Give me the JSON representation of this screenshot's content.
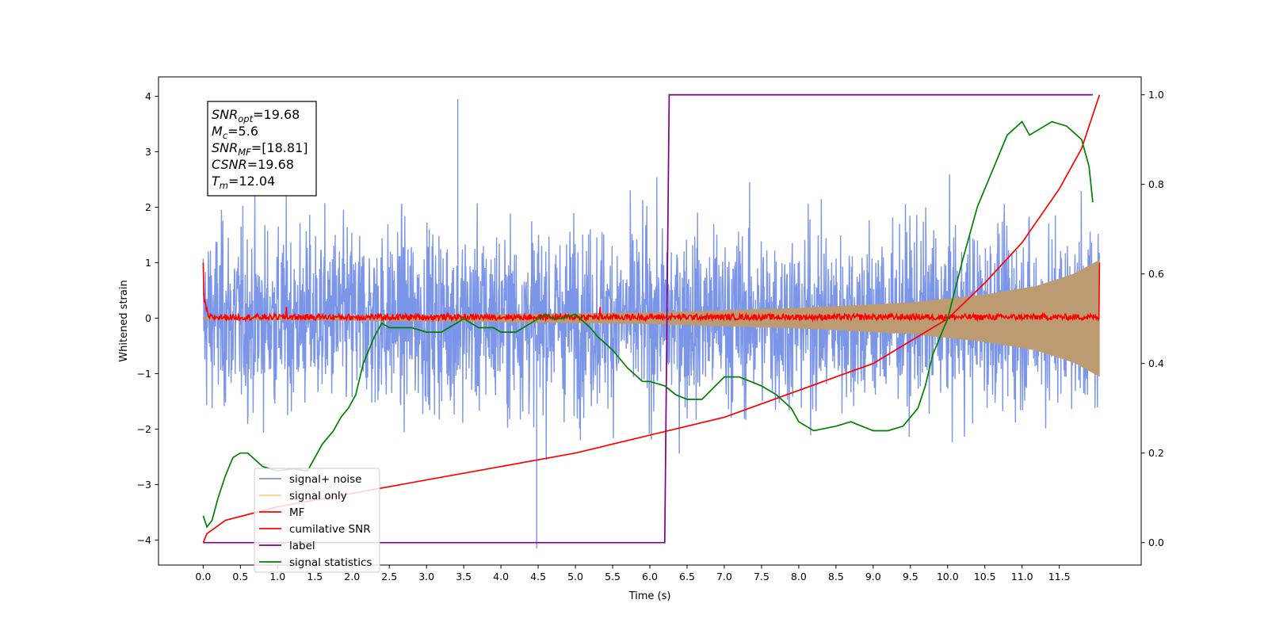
{
  "chart_data": {
    "type": "line",
    "xlabel": "Time (s)",
    "ylabel": "Whitened strain",
    "xlim": [
      -0.6,
      12.6
    ],
    "ylim": [
      -4.45,
      4.35
    ],
    "y2lim": [
      -0.05,
      1.04
    ],
    "x_ticks": [
      0.0,
      0.5,
      1.0,
      1.5,
      2.0,
      2.5,
      3.0,
      3.5,
      4.0,
      4.5,
      5.0,
      5.5,
      6.0,
      6.5,
      7.0,
      7.5,
      8.0,
      8.5,
      9.0,
      9.5,
      10.0,
      10.5,
      11.0,
      11.5
    ],
    "x_tick_labels": [
      "0.0",
      "0.5",
      "1.0",
      "1.5",
      "2.0",
      "2.5",
      "3.0",
      "3.5",
      "4.0",
      "4.5",
      "5.0",
      "5.5",
      "6.0",
      "6.5",
      "7.0",
      "7.5",
      "8.0",
      "8.5",
      "9.0",
      "9.5",
      "10.0",
      "10.5",
      "11.0",
      "11.5"
    ],
    "y_ticks": [
      4,
      3,
      2,
      1,
      0,
      -1,
      -2,
      -3,
      -4
    ],
    "y_tick_labels": [
      "4",
      "3",
      "2",
      "1",
      "0",
      "−1",
      "−2",
      "−3",
      "−4"
    ],
    "y2_ticks": [
      1.0,
      0.8,
      0.6,
      0.4,
      0.2,
      0.0
    ],
    "y2_tick_labels": [
      "1.0",
      "0.8",
      "0.6",
      "0.4",
      "0.2",
      "0.0"
    ],
    "grid": false,
    "legend_position": "bottom-left",
    "colors": {
      "signal_noise": "#7b95e8",
      "signal_only": "#ffd27f",
      "mf": "#ff0000",
      "cumulative_snr": "#ff0000",
      "label": "#800080",
      "signal_statistics": "#008000",
      "overlap": "#bc9b72"
    },
    "annotation": {
      "lines": [
        {
          "base": "SNR",
          "sub": "opt",
          "rest": "=19.68"
        },
        {
          "base": "M",
          "sub": "c",
          "rest": "=5.6"
        },
        {
          "base": "SNR",
          "sub": "MF",
          "rest": "=[18.81]"
        },
        {
          "base": "CSNR",
          "sub": "",
          "rest": "=19.68"
        },
        {
          "base": "T",
          "sub": "m",
          "rest": "=12.04"
        }
      ]
    },
    "series": [
      {
        "name": "signal+ noise",
        "axis": "left",
        "style": "noise",
        "x_range": [
          0.0,
          12.04
        ],
        "typical_range": [
          -2.3,
          2.3
        ],
        "max": 3.95,
        "min": -4.15
      },
      {
        "name": "signal only",
        "axis": "left",
        "style": "chirp",
        "x": [
          0.0,
          3.0,
          6.0,
          8.0,
          9.5,
          10.5,
          11.2,
          11.7,
          12.04
        ],
        "amplitude": [
          0.02,
          0.05,
          0.1,
          0.18,
          0.28,
          0.42,
          0.58,
          0.8,
          1.05
        ]
      },
      {
        "name": "MF",
        "axis": "left",
        "style": "mf",
        "x_range": [
          0.0,
          12.04
        ],
        "start_value": 1.0,
        "baseline": 0.02,
        "end_value": 1.0
      },
      {
        "name": "cumilative SNR",
        "axis": "right",
        "x": [
          0.0,
          0.05,
          0.3,
          1.0,
          2.0,
          3.0,
          4.0,
          5.0,
          6.0,
          6.5,
          7.0,
          7.5,
          8.0,
          8.5,
          9.0,
          9.5,
          10.0,
          10.5,
          11.0,
          11.5,
          11.8,
          12.04
        ],
        "y": [
          0.0,
          0.02,
          0.05,
          0.08,
          0.11,
          0.14,
          0.17,
          0.2,
          0.24,
          0.26,
          0.28,
          0.31,
          0.34,
          0.37,
          0.4,
          0.45,
          0.5,
          0.58,
          0.67,
          0.79,
          0.88,
          1.0
        ]
      },
      {
        "name": "label",
        "axis": "right",
        "x": [
          0.0,
          6.2,
          6.26,
          11.95
        ],
        "y": [
          0.0,
          0.0,
          1.0,
          1.0
        ]
      },
      {
        "name": "signal statistics",
        "axis": "right",
        "x": [
          0.0,
          0.05,
          0.12,
          0.2,
          0.3,
          0.4,
          0.5,
          0.6,
          0.7,
          0.8,
          1.0,
          1.2,
          1.4,
          1.5,
          1.6,
          1.75,
          1.85,
          1.95,
          2.05,
          2.15,
          2.3,
          2.4,
          2.5,
          2.6,
          2.8,
          3.0,
          3.2,
          3.3,
          3.5,
          3.7,
          3.9,
          4.0,
          4.2,
          4.4,
          4.6,
          4.7,
          4.8,
          5.0,
          5.2,
          5.3,
          5.5,
          5.7,
          5.9,
          6.0,
          6.2,
          6.35,
          6.5,
          6.7,
          7.0,
          7.2,
          7.5,
          7.7,
          7.9,
          8.0,
          8.2,
          8.5,
          8.7,
          9.0,
          9.2,
          9.4,
          9.6,
          9.7,
          9.8,
          10.0,
          10.2,
          10.4,
          10.6,
          10.8,
          11.0,
          11.1,
          11.2,
          11.4,
          11.6,
          11.8,
          11.9,
          11.95
        ],
        "y": [
          0.06,
          0.035,
          0.05,
          0.1,
          0.15,
          0.19,
          0.2,
          0.2,
          0.185,
          0.17,
          0.16,
          0.165,
          0.16,
          0.19,
          0.22,
          0.25,
          0.28,
          0.3,
          0.33,
          0.4,
          0.46,
          0.49,
          0.48,
          0.48,
          0.48,
          0.47,
          0.47,
          0.48,
          0.5,
          0.48,
          0.48,
          0.47,
          0.47,
          0.49,
          0.51,
          0.5,
          0.5,
          0.51,
          0.48,
          0.46,
          0.43,
          0.39,
          0.36,
          0.36,
          0.35,
          0.33,
          0.32,
          0.32,
          0.37,
          0.37,
          0.35,
          0.33,
          0.3,
          0.27,
          0.25,
          0.26,
          0.27,
          0.25,
          0.25,
          0.26,
          0.3,
          0.35,
          0.42,
          0.5,
          0.63,
          0.75,
          0.83,
          0.91,
          0.94,
          0.91,
          0.92,
          0.94,
          0.93,
          0.9,
          0.84,
          0.76
        ]
      }
    ]
  }
}
